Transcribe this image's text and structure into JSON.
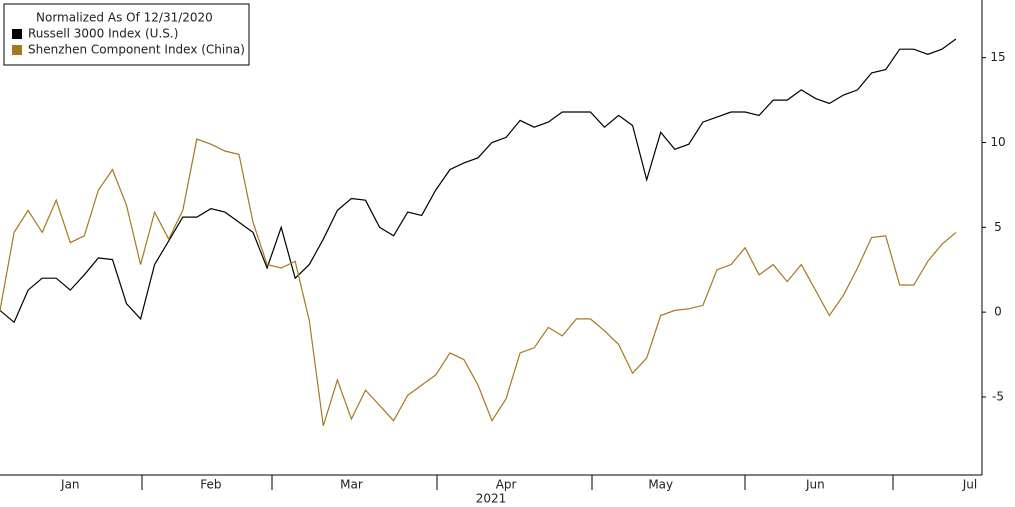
{
  "chart_data": {
    "type": "line",
    "legend_title": "Normalized As Of 12/31/2020",
    "x_label": "2021",
    "categories": [
      null,
      null,
      null,
      null,
      null,
      "Jan",
      null,
      null,
      null,
      null,
      null,
      null,
      null,
      null,
      null,
      "Feb",
      null,
      null,
      null,
      null,
      null,
      null,
      null,
      null,
      null,
      "Mar",
      null,
      null,
      null,
      null,
      null,
      null,
      null,
      null,
      null,
      null,
      "Apr",
      null,
      null,
      null,
      null,
      null,
      null,
      null,
      null,
      null,
      null,
      "May",
      null,
      null,
      null,
      null,
      null,
      null,
      null,
      null,
      null,
      null,
      "Jun",
      null,
      null,
      null,
      null,
      null,
      null,
      null,
      null,
      null,
      null,
      "Jul"
    ],
    "series": [
      {
        "name": "Russell 3000 Index (U.S.)",
        "color": "#000000",
        "values": [
          0.1,
          -0.6,
          1.3,
          2.0,
          2.0,
          1.3,
          2.2,
          3.2,
          3.1,
          0.5,
          -0.4,
          2.8,
          4.2,
          5.6,
          5.6,
          6.1,
          5.9,
          5.3,
          4.7,
          2.6,
          5.0,
          2.0,
          2.8,
          4.3,
          6.0,
          6.7,
          6.6,
          5.0,
          4.5,
          5.9,
          5.7,
          7.2,
          8.4,
          8.8,
          9.1,
          10.0,
          10.3,
          11.3,
          10.9,
          11.2,
          11.8,
          11.8,
          11.8,
          10.9,
          11.6,
          11.0,
          7.8,
          10.6,
          9.6,
          9.9,
          11.2,
          11.5,
          11.8,
          11.8,
          11.6,
          12.5,
          12.5,
          13.1,
          12.6,
          12.3,
          12.8,
          13.1,
          14.1,
          14.3,
          15.5,
          15.5,
          15.2,
          15.5,
          16.1,
          null
        ]
      },
      {
        "name": "Shenzhen Component Index (China)",
        "color": "#a57a1e",
        "values": [
          0.1,
          4.7,
          6.0,
          4.7,
          6.6,
          4.1,
          4.5,
          7.2,
          8.4,
          6.3,
          2.8,
          5.9,
          4.3,
          6.0,
          10.2,
          9.9,
          9.5,
          9.3,
          5.3,
          2.8,
          2.6,
          3.0,
          -0.5,
          -6.7,
          -4.0,
          -6.3,
          -4.6,
          -5.5,
          -6.4,
          -4.9,
          -4.3,
          -3.7,
          -2.4,
          -2.8,
          -4.3,
          -6.4,
          -5.1,
          -2.4,
          -2.1,
          -0.9,
          -1.4,
          -0.4,
          -0.4,
          -1.1,
          -1.9,
          -3.6,
          -2.7,
          -0.2,
          0.1,
          0.2,
          0.4,
          2.5,
          2.8,
          3.8,
          2.2,
          2.8,
          1.8,
          2.8,
          1.3,
          -0.2,
          1.0,
          2.6,
          4.4,
          4.5,
          1.6,
          1.6,
          3.0,
          4.0,
          4.7,
          null
        ]
      }
    ],
    "ylim": [
      -9.6,
      18.4
    ],
    "yticks": [
      -5,
      0,
      5,
      10,
      15
    ],
    "grid": false,
    "legend": "top-left"
  }
}
